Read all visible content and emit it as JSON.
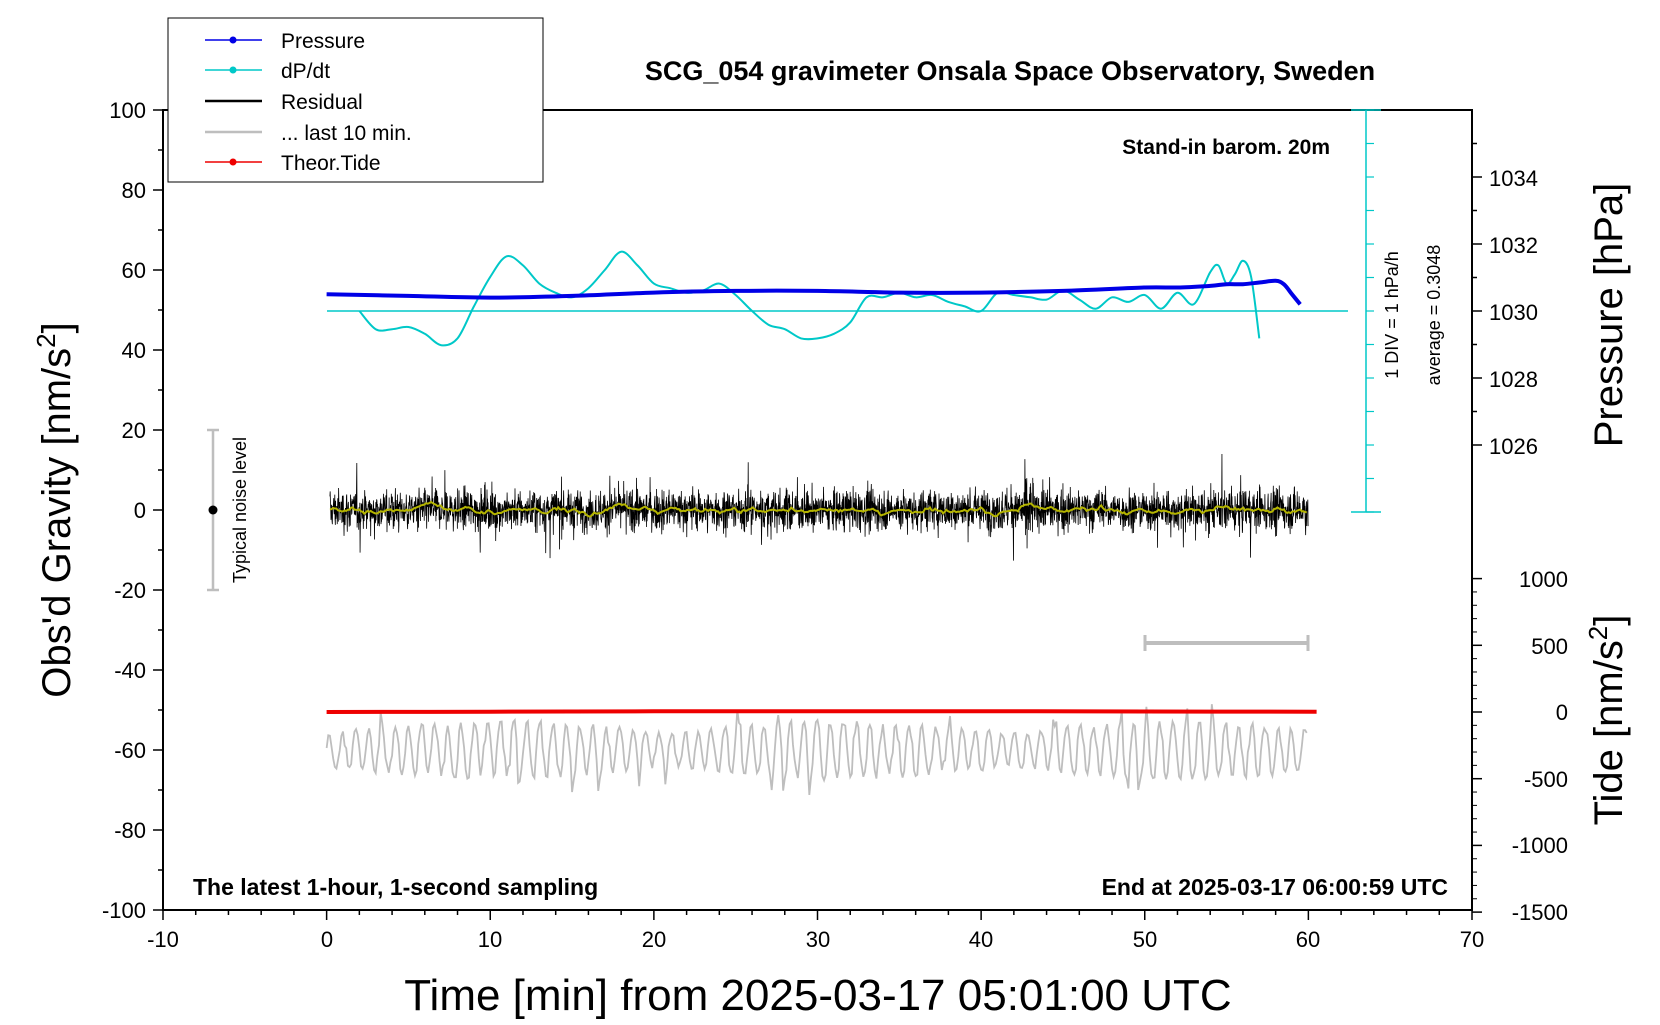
{
  "chart_data": {
    "type": "line",
    "title": "SCG_054 gravimeter Onsala Space Observatory, Sweden",
    "xlabel": "Time [min] from 2025-03-17 05:01:00 UTC",
    "ylabel_left": "Obs'd Gravity [nm/s",
    "ylabel_right_top": "Pressure [hPa]",
    "ylabel_right_bottom": "Tide [nm/s",
    "superscript": "2",
    "xlim": [
      -10,
      70
    ],
    "ylim_left": [
      -100,
      100
    ],
    "xticks": [
      "-10",
      "0",
      "10",
      "20",
      "30",
      "40",
      "50",
      "60",
      "70"
    ],
    "yticks_left": [
      "100",
      "80",
      "60",
      "40",
      "20",
      "0",
      "-20",
      "-40",
      "-60",
      "-80",
      "-100"
    ],
    "pressure_ticks": [
      "1034",
      "1032",
      "1030",
      "1028",
      "1026"
    ],
    "tide_ticks": [
      "1000",
      "500",
      "0",
      "-500",
      "-1000",
      "-1500"
    ],
    "annotations": {
      "barometer": "Stand-in barom. 20m",
      "sampling": "The latest 1-hour, 1-second sampling",
      "end_time": "End at 2025-03-17 06:00:59 UTC",
      "div_label": "1 DIV = 1 hPa/h",
      "average": "average = 0.3048",
      "noise": "Typical noise level"
    },
    "legend": {
      "position": "top-left",
      "items": [
        "Pressure",
        "dP/dt",
        "Residual",
        "... last 10 min.",
        "Theor.Tide"
      ]
    },
    "colors": {
      "pressure": "#0000e6",
      "dpdt": "#00c8c8",
      "residual": "#000000",
      "residual_smooth": "#b4b400",
      "last10": "#bebebe",
      "tide": "#ee0000"
    },
    "series": [
      {
        "name": "Pressure",
        "unit": "hPa",
        "x": [
          0,
          5,
          10,
          15,
          20,
          25,
          30,
          35,
          40,
          45,
          50,
          52,
          54,
          55,
          56,
          57,
          58,
          58.5,
          59,
          59.5
        ],
        "y": [
          1030.5,
          1030.45,
          1030.4,
          1030.45,
          1030.55,
          1030.6,
          1030.6,
          1030.55,
          1030.55,
          1030.6,
          1030.7,
          1030.7,
          1030.75,
          1030.8,
          1030.8,
          1030.85,
          1030.9,
          1030.8,
          1030.5,
          1030.2
        ]
      },
      {
        "name": "dP/dt",
        "unit": "relative to average, hPa/h",
        "x": [
          2,
          3,
          4,
          5,
          6,
          7,
          8,
          9,
          10,
          11,
          12,
          13,
          14,
          15,
          16,
          17,
          18,
          19,
          20,
          21,
          22,
          23,
          24,
          25,
          26,
          27,
          28,
          29,
          30,
          31,
          32,
          33,
          34,
          35,
          36,
          37,
          38,
          39,
          40,
          41,
          42,
          43,
          44,
          45,
          46,
          47,
          48,
          49,
          50,
          51,
          52,
          53,
          54,
          54.5,
          55,
          55.5,
          56,
          56.5,
          57
        ],
        "y": [
          0,
          -0.8,
          -0.8,
          -0.7,
          -1.0,
          -1.5,
          -1.2,
          0.2,
          1.5,
          2.4,
          2.0,
          1.2,
          0.8,
          0.6,
          1.0,
          1.8,
          2.6,
          2.0,
          1.2,
          1.0,
          0.8,
          0.9,
          1.2,
          0.7,
          0,
          -0.6,
          -0.8,
          -1.2,
          -1.2,
          -1.0,
          -0.5,
          0.6,
          0.6,
          0.8,
          0.6,
          0.7,
          0.4,
          0.2,
          0,
          0.8,
          0.7,
          0.6,
          0.5,
          0.9,
          0.5,
          0.1,
          0.6,
          0.4,
          0.7,
          0.1,
          0.8,
          0.3,
          1.7,
          2.0,
          1.2,
          1.6,
          2.2,
          1.5,
          -1.2
        ]
      },
      {
        "name": "Residual",
        "unit": "nm/s2",
        "description_range": [
          -12,
          12
        ],
        "x_range": [
          0,
          60
        ]
      },
      {
        "name": "... last 10 min.",
        "unit": "nm/s2 (offset -60)",
        "x_range": [
          0,
          60
        ]
      },
      {
        "name": "Theor.Tide",
        "unit": "nm/s2",
        "x": [
          0,
          10,
          20,
          30,
          40,
          50,
          60.5
        ],
        "y": [
          0,
          2,
          5,
          6,
          6,
          4,
          2
        ]
      }
    ]
  }
}
